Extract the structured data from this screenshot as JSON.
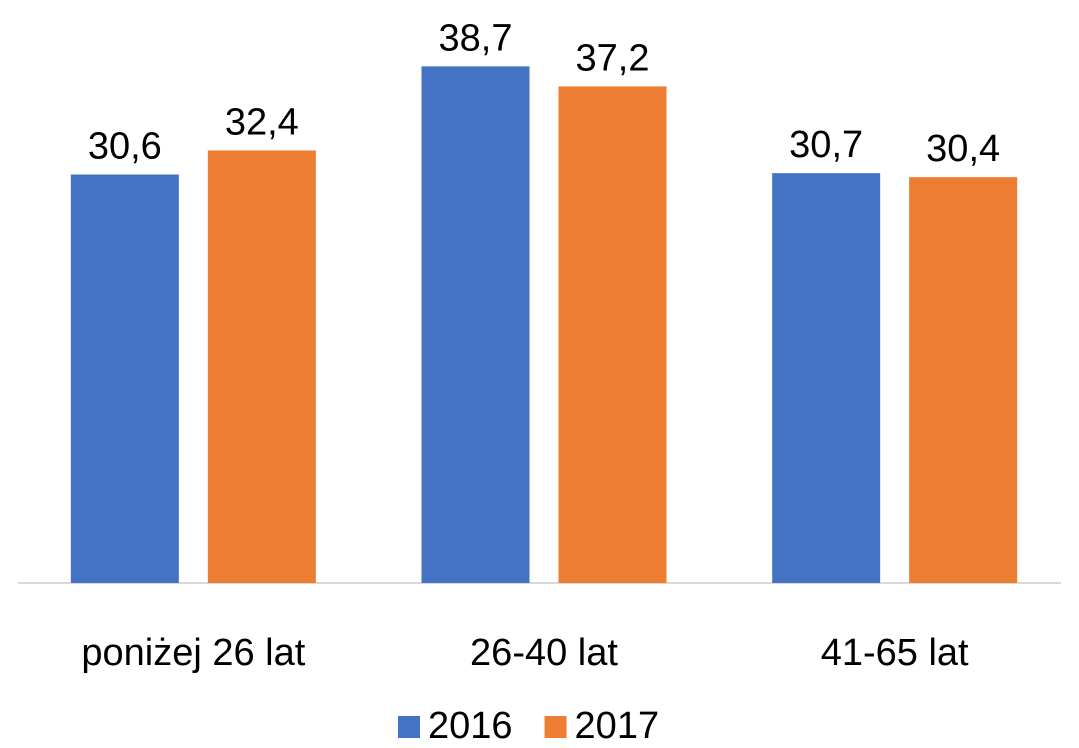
{
  "chart_data": {
    "type": "bar",
    "categories": [
      "poniżej 26 lat",
      "26-40 lat",
      "41-65 lat"
    ],
    "series": [
      {
        "name": "2016",
        "color": "#4472c4",
        "values": [
          30.6,
          38.7,
          30.7
        ],
        "value_labels": [
          "30,6",
          "38,7",
          "30,7"
        ]
      },
      {
        "name": "2017",
        "color": "#ed7d31",
        "values": [
          32.4,
          37.2,
          30.4
        ],
        "value_labels": [
          "32,4",
          "37,2",
          "30,4"
        ]
      }
    ],
    "ylim": [
      0,
      40
    ],
    "legend": "bottom"
  }
}
